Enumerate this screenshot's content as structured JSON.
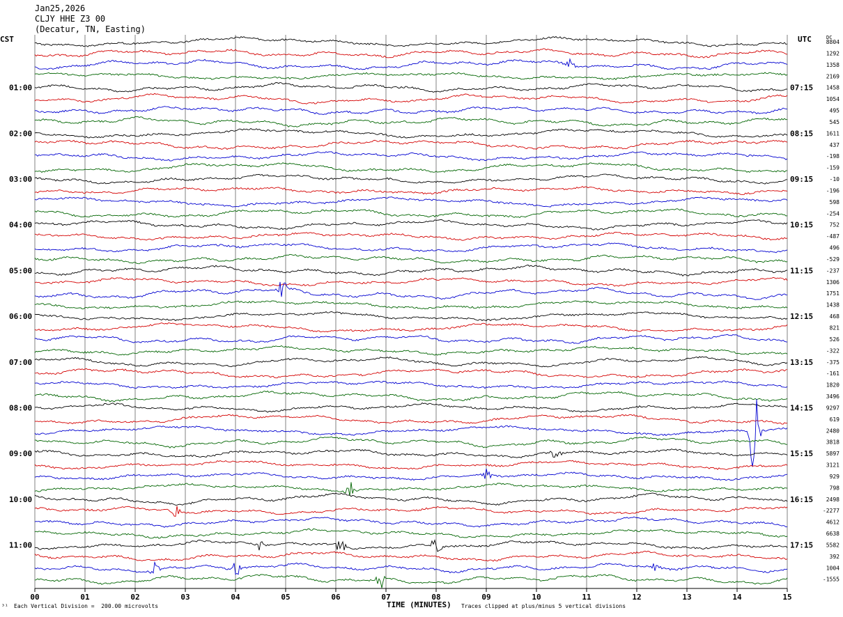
{
  "header": {
    "date": "Jan25,2026",
    "station": "CLJY HHE Z3 00",
    "location": "(Decatur, TN, Easting)"
  },
  "left_axis_title": "CST",
  "right_axis_title": "UTC",
  "dc_title": "DC",
  "footer": {
    "marker": "³¹",
    "scale_note": "Each Vertical Division =  200.00 microvolts",
    "x_title": "TIME (MINUTES)",
    "clip_note": "Traces clipped at plus/minus 5 vertical divisions"
  },
  "colors": {
    "trace_cycle": [
      "#000000",
      "#d40000",
      "#0000d0",
      "#006400"
    ],
    "grid": "#808080"
  },
  "chart_data": {
    "type": "line",
    "x_range": [
      0,
      15
    ],
    "x_ticks": [
      "00",
      "01",
      "02",
      "03",
      "04",
      "05",
      "06",
      "07",
      "08",
      "09",
      "10",
      "11",
      "12",
      "13",
      "14",
      "15"
    ],
    "traces_per_hour": 4,
    "row_count": 48,
    "left_hour_labels": [
      "01:00",
      "02:00",
      "03:00",
      "04:00",
      "05:00",
      "06:00",
      "07:00",
      "08:00",
      "09:00",
      "10:00",
      "11:00"
    ],
    "right_hour_labels": [
      "07:15",
      "08:15",
      "09:15",
      "10:15",
      "11:15",
      "12:15",
      "13:15",
      "14:15",
      "15:15",
      "16:15",
      "17:15"
    ],
    "dc_offsets": [
      "8804",
      "1292",
      "1358",
      "2169",
      "1458",
      "1054",
      "495",
      "545",
      "1611",
      "437",
      "-198",
      "-159",
      "-10",
      "-196",
      "598",
      "-254",
      "752",
      "-487",
      "496",
      "-529",
      "-237",
      "1306",
      "1751",
      "1438",
      "468",
      "821",
      "526",
      "-322",
      "-375",
      "-161",
      "1820",
      "3496",
      "9297",
      "619",
      "2480",
      "3818",
      "5897",
      "3121",
      "929",
      "798",
      "2498",
      "-2277",
      "4612",
      "6638",
      "5582",
      "392",
      "1004",
      "-1555"
    ],
    "events": [
      {
        "row": 2,
        "minute": 10.65,
        "amplitude_div": 1.0
      },
      {
        "row": 22,
        "minute": 4.95,
        "amplitude_div": 1.2
      },
      {
        "row": 34,
        "minute": 14.35,
        "amplitude_div": 5.0
      },
      {
        "row": 36,
        "minute": 10.4,
        "amplitude_div": 0.8
      },
      {
        "row": 38,
        "minute": 9.0,
        "amplitude_div": 0.6
      },
      {
        "row": 39,
        "minute": 6.3,
        "amplitude_div": 0.8
      },
      {
        "row": 41,
        "minute": 2.8,
        "amplitude_div": 0.6
      },
      {
        "row": 44,
        "minute": 4.5,
        "amplitude_div": 0.6
      },
      {
        "row": 44,
        "minute": 6.1,
        "amplitude_div": 0.8
      },
      {
        "row": 44,
        "minute": 8.0,
        "amplitude_div": 1.2
      },
      {
        "row": 46,
        "minute": 2.4,
        "amplitude_div": 0.8
      },
      {
        "row": 46,
        "minute": 4.0,
        "amplitude_div": 1.0
      },
      {
        "row": 46,
        "minute": 12.4,
        "amplitude_div": 0.6
      },
      {
        "row": 47,
        "minute": 6.9,
        "amplitude_div": 1.0
      }
    ]
  }
}
